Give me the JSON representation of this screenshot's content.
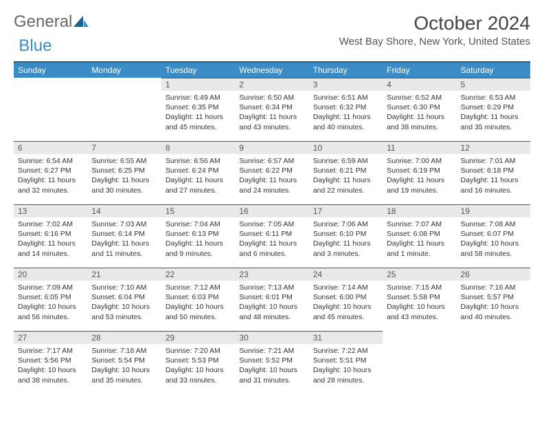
{
  "brand": {
    "part1": "General",
    "part2": "Blue"
  },
  "title": "October 2024",
  "location": "West Bay Shore, New York, United States",
  "colors": {
    "header_bg": "#3b8bc4",
    "header_border": "#1f5f8b",
    "daynum_bg": "#e9e9e9",
    "text": "#333333"
  },
  "weekdays": [
    "Sunday",
    "Monday",
    "Tuesday",
    "Wednesday",
    "Thursday",
    "Friday",
    "Saturday"
  ],
  "first_weekday_index": 2,
  "days": [
    {
      "n": 1,
      "sunrise": "6:49 AM",
      "sunset": "6:35 PM",
      "daylight": "11 hours and 45 minutes."
    },
    {
      "n": 2,
      "sunrise": "6:50 AM",
      "sunset": "6:34 PM",
      "daylight": "11 hours and 43 minutes."
    },
    {
      "n": 3,
      "sunrise": "6:51 AM",
      "sunset": "6:32 PM",
      "daylight": "11 hours and 40 minutes."
    },
    {
      "n": 4,
      "sunrise": "6:52 AM",
      "sunset": "6:30 PM",
      "daylight": "11 hours and 38 minutes."
    },
    {
      "n": 5,
      "sunrise": "6:53 AM",
      "sunset": "6:29 PM",
      "daylight": "11 hours and 35 minutes."
    },
    {
      "n": 6,
      "sunrise": "6:54 AM",
      "sunset": "6:27 PM",
      "daylight": "11 hours and 32 minutes."
    },
    {
      "n": 7,
      "sunrise": "6:55 AM",
      "sunset": "6:25 PM",
      "daylight": "11 hours and 30 minutes."
    },
    {
      "n": 8,
      "sunrise": "6:56 AM",
      "sunset": "6:24 PM",
      "daylight": "11 hours and 27 minutes."
    },
    {
      "n": 9,
      "sunrise": "6:57 AM",
      "sunset": "6:22 PM",
      "daylight": "11 hours and 24 minutes."
    },
    {
      "n": 10,
      "sunrise": "6:59 AM",
      "sunset": "6:21 PM",
      "daylight": "11 hours and 22 minutes."
    },
    {
      "n": 11,
      "sunrise": "7:00 AM",
      "sunset": "6:19 PM",
      "daylight": "11 hours and 19 minutes."
    },
    {
      "n": 12,
      "sunrise": "7:01 AM",
      "sunset": "6:18 PM",
      "daylight": "11 hours and 16 minutes."
    },
    {
      "n": 13,
      "sunrise": "7:02 AM",
      "sunset": "6:16 PM",
      "daylight": "11 hours and 14 minutes."
    },
    {
      "n": 14,
      "sunrise": "7:03 AM",
      "sunset": "6:14 PM",
      "daylight": "11 hours and 11 minutes."
    },
    {
      "n": 15,
      "sunrise": "7:04 AM",
      "sunset": "6:13 PM",
      "daylight": "11 hours and 9 minutes."
    },
    {
      "n": 16,
      "sunrise": "7:05 AM",
      "sunset": "6:11 PM",
      "daylight": "11 hours and 6 minutes."
    },
    {
      "n": 17,
      "sunrise": "7:06 AM",
      "sunset": "6:10 PM",
      "daylight": "11 hours and 3 minutes."
    },
    {
      "n": 18,
      "sunrise": "7:07 AM",
      "sunset": "6:08 PM",
      "daylight": "11 hours and 1 minute."
    },
    {
      "n": 19,
      "sunrise": "7:08 AM",
      "sunset": "6:07 PM",
      "daylight": "10 hours and 58 minutes."
    },
    {
      "n": 20,
      "sunrise": "7:09 AM",
      "sunset": "6:05 PM",
      "daylight": "10 hours and 56 minutes."
    },
    {
      "n": 21,
      "sunrise": "7:10 AM",
      "sunset": "6:04 PM",
      "daylight": "10 hours and 53 minutes."
    },
    {
      "n": 22,
      "sunrise": "7:12 AM",
      "sunset": "6:03 PM",
      "daylight": "10 hours and 50 minutes."
    },
    {
      "n": 23,
      "sunrise": "7:13 AM",
      "sunset": "6:01 PM",
      "daylight": "10 hours and 48 minutes."
    },
    {
      "n": 24,
      "sunrise": "7:14 AM",
      "sunset": "6:00 PM",
      "daylight": "10 hours and 45 minutes."
    },
    {
      "n": 25,
      "sunrise": "7:15 AM",
      "sunset": "5:58 PM",
      "daylight": "10 hours and 43 minutes."
    },
    {
      "n": 26,
      "sunrise": "7:16 AM",
      "sunset": "5:57 PM",
      "daylight": "10 hours and 40 minutes."
    },
    {
      "n": 27,
      "sunrise": "7:17 AM",
      "sunset": "5:56 PM",
      "daylight": "10 hours and 38 minutes."
    },
    {
      "n": 28,
      "sunrise": "7:18 AM",
      "sunset": "5:54 PM",
      "daylight": "10 hours and 35 minutes."
    },
    {
      "n": 29,
      "sunrise": "7:20 AM",
      "sunset": "5:53 PM",
      "daylight": "10 hours and 33 minutes."
    },
    {
      "n": 30,
      "sunrise": "7:21 AM",
      "sunset": "5:52 PM",
      "daylight": "10 hours and 31 minutes."
    },
    {
      "n": 31,
      "sunrise": "7:22 AM",
      "sunset": "5:51 PM",
      "daylight": "10 hours and 28 minutes."
    }
  ],
  "labels": {
    "sunrise": "Sunrise:",
    "sunset": "Sunset:",
    "daylight": "Daylight:"
  }
}
